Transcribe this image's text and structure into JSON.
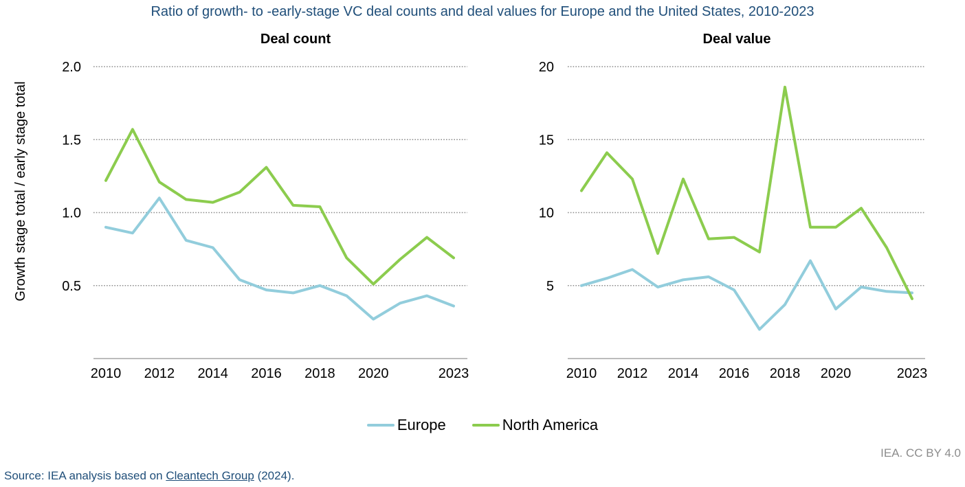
{
  "title": "Ratio of growth- to -early-stage VC deal counts and deal values for Europe and the United States, 2010-2023",
  "credit": "IEA. CC BY 4.0",
  "source": {
    "prefix": "Source: IEA analysis based on ",
    "link_text": "Cleantech Group",
    "suffix": " (2024)."
  },
  "legend": [
    {
      "name": "Europe",
      "color": "#92cddc"
    },
    {
      "name": "North America",
      "color": "#8ccc4e"
    }
  ],
  "chart_data": [
    {
      "type": "line",
      "title": "Deal count",
      "ylabel": "Growth stage total / early stage total",
      "xlabel": "",
      "x": [
        2010,
        2011,
        2012,
        2013,
        2014,
        2015,
        2016,
        2017,
        2018,
        2019,
        2020,
        2021,
        2022,
        2023
      ],
      "x_ticks": [
        "2010",
        "2012",
        "2014",
        "2016",
        "2018",
        "2020",
        "2023"
      ],
      "y_ticks": [
        "0.5",
        "1.0",
        "1.5",
        "2.0"
      ],
      "ylim": [
        0,
        2.0
      ],
      "grid": true,
      "series": [
        {
          "name": "Europe",
          "values": [
            0.9,
            0.86,
            1.1,
            0.81,
            0.76,
            0.54,
            0.47,
            0.45,
            0.5,
            0.43,
            0.27,
            0.38,
            0.43,
            0.36
          ]
        },
        {
          "name": "North America",
          "values": [
            1.22,
            1.57,
            1.21,
            1.09,
            1.07,
            1.14,
            1.31,
            1.05,
            1.04,
            0.69,
            0.51,
            0.68,
            0.83,
            0.69
          ]
        }
      ]
    },
    {
      "type": "line",
      "title": "Deal value",
      "ylabel": "",
      "xlabel": "",
      "x": [
        2010,
        2011,
        2012,
        2013,
        2014,
        2015,
        2016,
        2017,
        2018,
        2019,
        2020,
        2021,
        2022,
        2023
      ],
      "x_ticks": [
        "2010",
        "2012",
        "2014",
        "2016",
        "2018",
        "2020",
        "2023"
      ],
      "y_ticks": [
        "5",
        "10",
        "15",
        "20"
      ],
      "ylim": [
        0,
        20
      ],
      "grid": true,
      "series": [
        {
          "name": "Europe",
          "values": [
            5.0,
            5.5,
            6.1,
            4.9,
            5.4,
            5.6,
            4.7,
            2.0,
            3.7,
            6.7,
            3.4,
            4.9,
            4.6,
            4.5
          ]
        },
        {
          "name": "North America",
          "values": [
            11.5,
            14.1,
            12.3,
            7.2,
            12.3,
            8.2,
            8.3,
            7.3,
            18.6,
            9.0,
            9.0,
            10.3,
            7.6,
            4.1
          ]
        }
      ]
    }
  ]
}
